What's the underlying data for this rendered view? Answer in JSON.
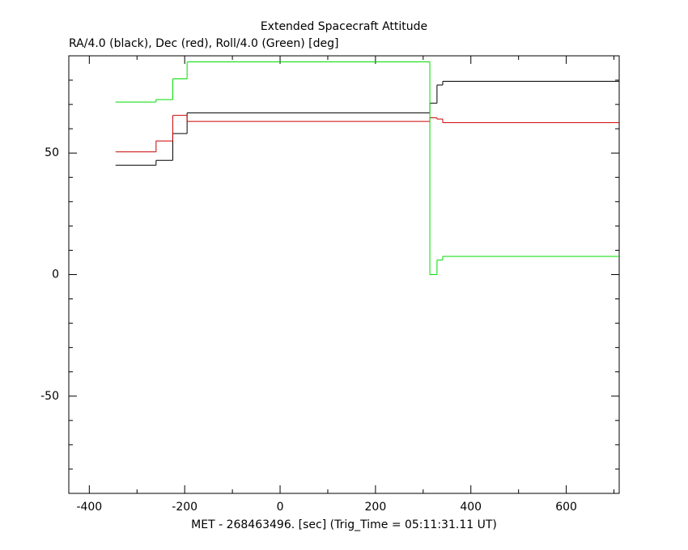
{
  "chart_data": {
    "type": "step",
    "title": "Extended Spacecraft Attitude",
    "subtitle": "RA/4.0 (black), Dec (red), Roll/4.0 (Green) [deg]",
    "xlabel": "MET - 268463496. [sec] (Trig_Time = 05:11:31.11 UT)",
    "x": [
      -345,
      -260,
      -225,
      -195,
      314,
      329,
      341,
      711
    ],
    "series": [
      {
        "color": "#000000",
        "values": [
          45,
          47,
          58,
          66.5,
          70.5,
          78,
          79.5,
          79.5
        ]
      },
      {
        "color": "#cc0000",
        "values": [
          50.5,
          55,
          65.5,
          63,
          64.5,
          64,
          62.5,
          62.5
        ]
      },
      {
        "color": "#00dd00",
        "values": [
          71,
          72,
          80.5,
          87.5,
          0,
          6,
          7.5,
          7.5
        ]
      }
    ],
    "xlim": [
      -443,
      711
    ],
    "ylim": [
      -90,
      90
    ],
    "xticks": [
      -400,
      -200,
      0,
      200,
      400,
      600
    ],
    "yticks": [
      -50,
      0,
      50
    ],
    "xminorticks": [
      -300,
      -100,
      100,
      300,
      500,
      700
    ],
    "yminorticks": [
      -80,
      -70,
      -60,
      -40,
      -30,
      -20,
      -10,
      10,
      20,
      30,
      40,
      60,
      70,
      80
    ]
  }
}
